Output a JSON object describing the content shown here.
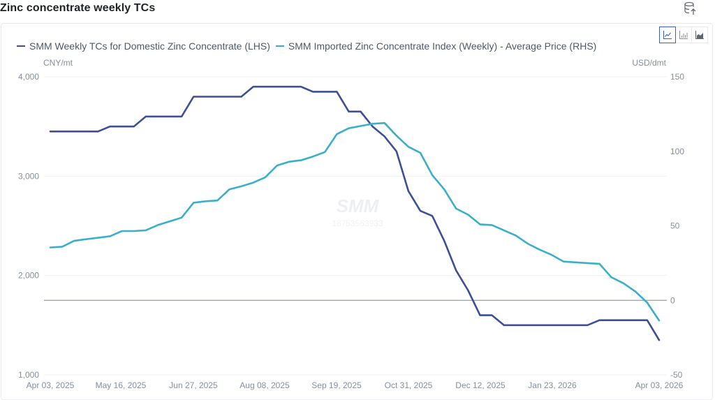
{
  "page": {
    "title": "Zinc concentrate weekly TCs",
    "export_icon": "database-export-icon",
    "chart_type_buttons": [
      {
        "name": "line-chart-icon",
        "active": true
      },
      {
        "name": "bar-chart-icon",
        "active": false
      },
      {
        "name": "area-chart-icon",
        "active": false
      }
    ],
    "watermark": {
      "brand": "SMM",
      "id": "18753563933"
    }
  },
  "chart_data": {
    "type": "line",
    "title": "Zinc concentrate weekly TCs",
    "legend_position": "top-left",
    "grid": true,
    "x_tick_labels": [
      "Apr 03, 2025",
      "May 16, 2025",
      "Jun 27, 2025",
      "Aug 08, 2025",
      "Sep 19, 2025",
      "Oct 31, 2025",
      "Dec 12, 2025",
      "Jan 23, 2026",
      "Apr 03, 2026"
    ],
    "x_range": [
      "Apr 03, 2025",
      "Apr 03, 2026"
    ],
    "y_left": {
      "label": "CNY/mt",
      "ticks": [
        "1,000",
        "2,000",
        "3,000",
        "4,000"
      ],
      "range": [
        1000,
        4000
      ]
    },
    "y_right": {
      "label": "USD/dmt",
      "ticks": [
        "-50",
        "0",
        "50",
        "100",
        "150"
      ],
      "range": [
        -50,
        150
      ]
    },
    "series": [
      {
        "name": "SMM Weekly TCs for Domestic Zinc Concentrate (LHS)",
        "axis": "left",
        "color": "#3d4f96",
        "values": [
          3450,
          3450,
          3450,
          3450,
          3450,
          3500,
          3500,
          3500,
          3600,
          3600,
          3600,
          3600,
          3800,
          3800,
          3800,
          3800,
          3800,
          3900,
          3900,
          3900,
          3900,
          3900,
          3850,
          3850,
          3850,
          3650,
          3650,
          3500,
          3400,
          3250,
          2850,
          2650,
          2600,
          2350,
          2050,
          1850,
          1600,
          1600,
          1500,
          1500,
          1500,
          1500,
          1500,
          1500,
          1500,
          1500,
          1550,
          1550,
          1550,
          1550,
          1550,
          1350
        ]
      },
      {
        "name": "SMM Imported Zinc Concentrate Index (Weekly) - Average Price (RHS)",
        "axis": "right",
        "color": "#3ab0c8",
        "values": [
          35.5,
          36,
          40,
          41,
          42,
          43,
          46.5,
          46.5,
          47,
          50.5,
          53,
          55.5,
          65.5,
          66.5,
          67,
          74.5,
          76.5,
          79,
          82.5,
          90.5,
          93,
          94,
          96.5,
          99.5,
          111.5,
          115.5,
          117,
          118.5,
          119,
          110.5,
          103,
          99,
          84,
          74.5,
          61.5,
          57.5,
          51,
          50.5,
          47,
          43.5,
          38,
          34,
          30.5,
          26,
          25.5,
          25,
          24.5,
          15.5,
          11.5,
          6,
          -1.5,
          -13.5
        ]
      }
    ]
  }
}
